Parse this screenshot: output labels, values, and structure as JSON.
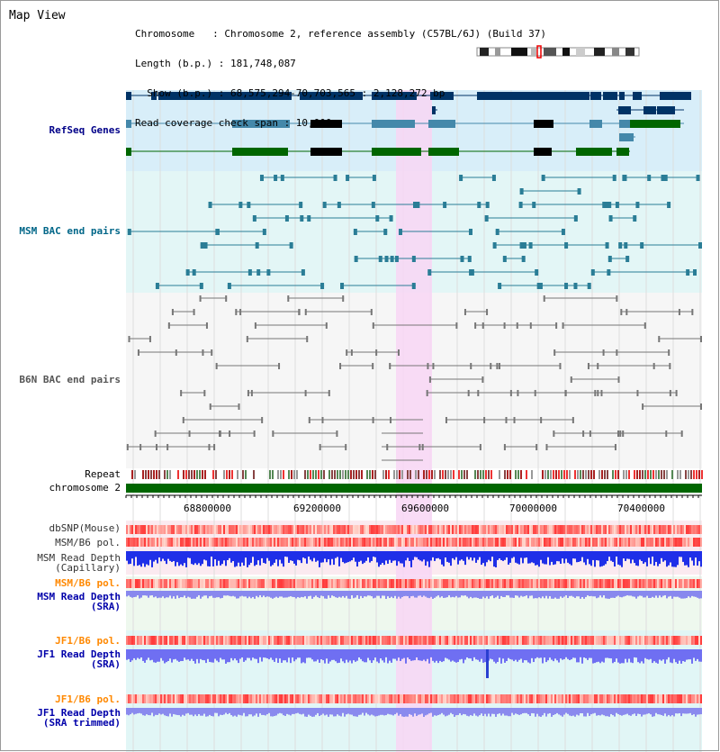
{
  "title": "Map View",
  "header": {
    "line1": "Chromosome   : Chromosome 2, reference assembly (C57BL/6J) (Build 37)",
    "line2": "Length (b.p.) : 181,748,087",
    "line3": "  Show (b.p.) : 68,575,294-70,703,565 : 2,128,272 bp",
    "line4": "Read coverage check span : 10,000"
  },
  "tracks": {
    "refseq": {
      "label": "RefSeq Genes",
      "color": "#000088"
    },
    "msm_bac": {
      "label": "MSM BAC end pairs",
      "color": "#006688"
    },
    "b6n_bac": {
      "label": "B6N BAC end pairs",
      "color": "#555555"
    },
    "repeat": {
      "label": "Repeat"
    },
    "chromosome": {
      "label": "chromosome 2"
    },
    "dbsnp": {
      "label": "dbSNP(Mouse)"
    },
    "msm_b6_pol": {
      "label": "MSM/B6 pol."
    },
    "msm_depth_cap": {
      "label1": "MSM Read Depth",
      "label2": "(Capillary)"
    },
    "msm_b6_pol2": {
      "label": "MSM/B6 pol.",
      "color": "#ff8800"
    },
    "msm_depth_sra": {
      "label1": "MSM Read Depth",
      "label2": "(SRA)",
      "color": "#0000aa"
    },
    "jf1_b6_pol": {
      "label": "JF1/B6 pol.",
      "color": "#ff8800"
    },
    "jf1_depth_sra": {
      "label1": "JF1 Read Depth",
      "label2": "(SRA)",
      "color": "#0000aa"
    },
    "jf1_b6_pol2": {
      "label": "JF1/B6 pol.",
      "color": "#ff8800"
    },
    "jf1_depth_trim": {
      "label1": "JF1 Read Depth",
      "label2": "(SRA trimmed)",
      "color": "#0000aa"
    }
  },
  "axis": {
    "ticks": [
      "68800000",
      "69200000",
      "69600000",
      "70000000",
      "70400000"
    ]
  },
  "colors": {
    "highlight": "#f8d6f5",
    "gene_dark": "#003366",
    "gene_mid": "#4488aa",
    "gene_green": "#006600",
    "chrom_green": "#006600"
  }
}
